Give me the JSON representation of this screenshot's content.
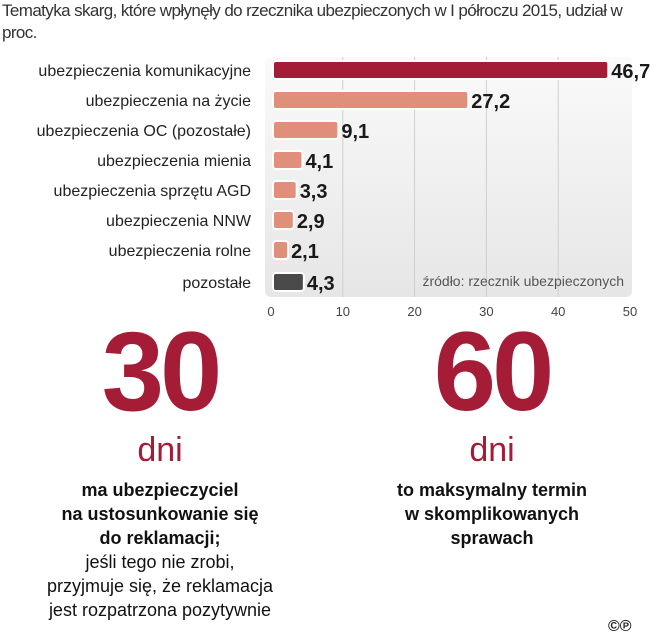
{
  "chart_data": {
    "type": "bar",
    "title": "Tematyka skarg, które wpłynęły do rzecznika ubezpieczonych w I półroczu 2015, udział w proc.",
    "categories": [
      "ubezpieczenia komunikacyjne",
      "ubezpieczenia  na życie",
      "ubezpieczenia OC (pozostałe)",
      "ubezpieczenia mienia",
      "ubezpieczenia sprzętu AGD",
      "ubezpieczenia NNW",
      "ubezpieczenia rolne",
      "pozostałe"
    ],
    "values": [
      46.7,
      27.2,
      9.1,
      4.1,
      3.3,
      2.9,
      2.1,
      4.3
    ],
    "value_labels": [
      "46,7",
      "27,2",
      "9,1",
      "4,1",
      "3,3",
      "2,9",
      "2,1",
      "4,3"
    ],
    "colors": [
      "#a51c36",
      "#e0907a",
      "#e0907a",
      "#e0907a",
      "#e0907a",
      "#e0907a",
      "#e0907a",
      "#4a4a4a"
    ],
    "xlim": [
      0,
      50
    ],
    "xticks": [
      "0",
      "10",
      "20",
      "30",
      "40",
      "50"
    ],
    "source": "źródło: rzecznik ubezpieczonych",
    "grid": true
  },
  "facts": [
    {
      "number": "30",
      "unit": "dni",
      "bold_lines": [
        "ma ubezpieczyciel",
        "na ustosunkowanie się",
        "do reklamacji;"
      ],
      "normal_lines": [
        "jeśli tego nie zrobi,",
        "przyjmuje się, że reklamacja",
        "jest rozpatrzona pozytywnie"
      ]
    },
    {
      "number": "60",
      "unit": "dni",
      "bold_lines": [
        "to maksymalny termin",
        "w skomplikowanych",
        "sprawach"
      ],
      "normal_lines": []
    }
  ],
  "logo": "©℗"
}
